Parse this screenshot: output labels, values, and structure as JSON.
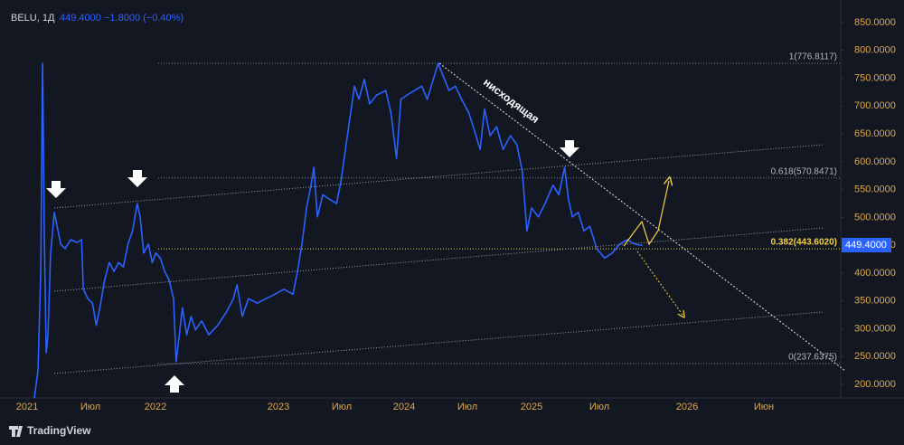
{
  "chart_data": {
    "type": "line",
    "symbol": "BELU, 1Д",
    "price_label": "449.4000",
    "change_label": "−1.8000 (−0.40%)",
    "annotation": "нисходящая",
    "brand": "TradingView",
    "series": [
      {
        "name": "BELU",
        "color": "#2962ff",
        "x": [
          2021.057,
          2021.086,
          2021.108,
          2021.122,
          2021.136,
          2021.151,
          2021.165,
          2021.186,
          2021.215,
          2021.237,
          2021.265,
          2021.301,
          2021.344,
          2021.394,
          2021.43,
          2021.444,
          2021.48,
          2021.516,
          2021.545,
          2021.573,
          2021.609,
          2021.645,
          2021.681,
          2021.717,
          2021.753,
          2021.789,
          2021.824,
          2021.86,
          2021.882,
          2021.91,
          2021.946,
          2021.975,
          2022.004,
          2022.039,
          2022.075,
          2022.111,
          2022.147,
          2022.168,
          2022.19,
          2022.219,
          2022.254,
          2022.29,
          2022.326,
          2022.376,
          2022.434,
          2022.505,
          2022.577,
          2022.634,
          2022.663,
          2022.706,
          2022.756,
          2022.828,
          2022.9,
          2022.971,
          2023.043,
          2023.115,
          2023.151,
          2023.186,
          2023.222,
          2023.258,
          2023.28,
          2023.308,
          2023.351,
          2023.401,
          2023.459,
          2023.495,
          2023.53,
          2023.566,
          2023.602,
          2023.638,
          2023.681,
          2023.724,
          2023.781,
          2023.853,
          2023.896,
          2023.939,
          2023.975,
          2024.025,
          2024.082,
          2024.14,
          2024.183,
          2024.226,
          2024.269,
          2024.312,
          2024.355,
          2024.405,
          2024.455,
          2024.513,
          2024.556,
          2024.599,
          2024.634,
          2024.677,
          2024.728,
          2024.778,
          2024.835,
          2024.885,
          2024.928,
          2024.964,
          2025.0,
          2025.05,
          2025.1,
          2025.158,
          2025.201,
          2025.244,
          2025.272,
          2025.301,
          2025.344,
          2025.387,
          2025.43,
          2025.48,
          2025.53,
          2025.573,
          2025.616,
          2025.659,
          2025.703,
          2025.746
        ],
        "values": [
          175.6,
          224,
          403,
          777,
          468,
          257,
          289,
          436,
          509,
          484,
          452,
          444,
          460,
          455,
          460,
          371,
          354,
          346,
          306,
          338,
          387,
          419,
          403,
          419,
          411,
          452,
          476,
          525,
          501,
          436,
          452,
          419,
          436,
          427,
          403,
          387,
          354,
          241,
          281,
          338,
          289,
          322,
          298,
          314,
          289,
          306,
          330,
          354,
          379,
          322,
          354,
          346,
          354,
          362,
          371,
          362,
          403,
          452,
          517,
          558,
          590,
          501,
          541,
          533,
          525,
          566,
          622,
          679,
          736,
          712,
          748,
          704,
          720,
          728,
          687,
          606,
          712,
          720,
          728,
          736,
          712,
          744,
          777,
          752,
          728,
          736,
          712,
          687,
          655,
          622,
          695,
          647,
          663,
          622,
          647,
          631,
          582,
          476,
          517,
          501,
          525,
          558,
          541,
          590,
          533,
          501,
          509,
          476,
          484,
          444,
          427,
          436,
          452,
          460,
          452,
          449.4
        ]
      }
    ],
    "fib_levels": [
      {
        "value": 776.8117,
        "label": "1(776.8117)"
      },
      {
        "value": 570.8471,
        "label": "0.618(570.8471)"
      },
      {
        "value": 443.602,
        "label": "0.382(443.6020)"
      },
      {
        "value": 237.6375,
        "label": "0(237.6375)"
      }
    ],
    "xlim": [
      2020.785,
      2026.9
    ],
    "xticks": [
      2021,
      {
        "value": 2021.5,
        "label": "Июл"
      },
      2022,
      2023,
      {
        "value": 2023.5,
        "label": "Июл"
      },
      2024,
      {
        "value": 2024.5,
        "label": "Июл"
      },
      2025,
      {
        "value": 2025.5,
        "label": "Июл"
      },
      2026,
      {
        "value": 2026.417,
        "label": "Июн"
      }
    ],
    "ylim": [
      167.5,
      877.5
    ],
    "yticks": [
      {
        "value": 200,
        "label": "200.0000"
      },
      {
        "value": 250,
        "label": "250.0000"
      },
      {
        "value": 300,
        "label": "300.0000"
      },
      {
        "value": 350,
        "label": "350.0000"
      },
      {
        "value": 400,
        "label": "400.0000"
      },
      {
        "value": 450,
        "label": "450.0000"
      },
      {
        "value": 500,
        "label": "500.0000"
      },
      {
        "value": 550,
        "label": "550.0000"
      },
      {
        "value": 600,
        "label": "600.0000"
      },
      {
        "value": 650,
        "label": "650.0000"
      },
      {
        "value": 700,
        "label": "700.0000"
      },
      {
        "value": 750,
        "label": "750.0000"
      },
      {
        "value": 800,
        "label": "800.0000"
      },
      {
        "value": 850,
        "label": "850.0000"
      }
    ]
  }
}
